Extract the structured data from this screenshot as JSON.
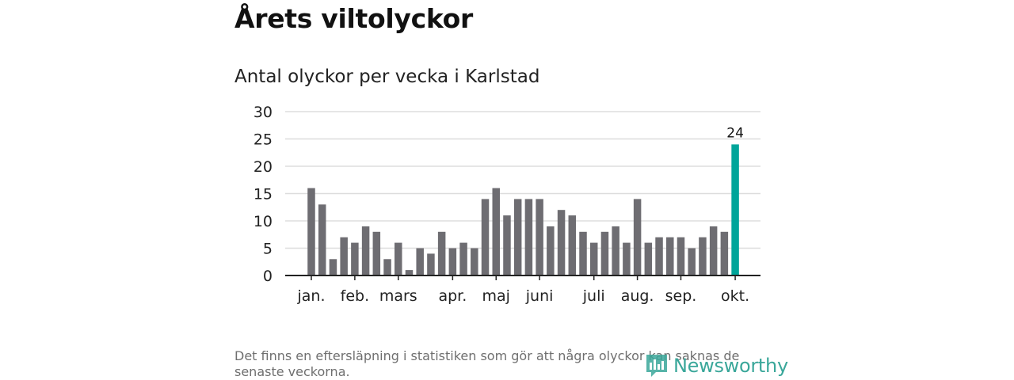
{
  "header": {
    "title": "Årets viltolyckor",
    "subtitle": "Antal olyckor per vecka i Karlstad"
  },
  "footnote": "Det finns en eftersläpning i statistiken som gör att några olyckor kan saknas de senaste veckorna.",
  "brand": {
    "name": "Newsworthy",
    "color": "#3aa79a",
    "icon": "newsworthy-logo-icon"
  },
  "colors": {
    "bar": "#6e6d72",
    "highlight": "#00a59a"
  },
  "chart_data": {
    "type": "bar",
    "values": [
      16,
      13,
      3,
      7,
      6,
      9,
      8,
      3,
      6,
      1,
      5,
      4,
      8,
      5,
      6,
      5,
      14,
      16,
      11,
      14,
      14,
      14,
      9,
      12,
      11,
      8,
      6,
      8,
      9,
      6,
      14,
      6,
      7,
      7,
      7,
      5,
      7,
      9,
      8,
      24
    ],
    "highlight_index": 39,
    "highlight_label": "24",
    "ylim": [
      0,
      30
    ],
    "yticks": [
      0,
      5,
      10,
      15,
      20,
      25,
      30
    ],
    "xticks": [
      {
        "label": "jan.",
        "at": 0
      },
      {
        "label": "feb.",
        "at": 4
      },
      {
        "label": "mars",
        "at": 8
      },
      {
        "label": "apr.",
        "at": 13
      },
      {
        "label": "maj",
        "at": 17
      },
      {
        "label": "juni",
        "at": 21
      },
      {
        "label": "juli",
        "at": 26
      },
      {
        "label": "aug.",
        "at": 30
      },
      {
        "label": "sep.",
        "at": 34
      },
      {
        "label": "okt.",
        "at": 39
      }
    ],
    "grid": true
  }
}
